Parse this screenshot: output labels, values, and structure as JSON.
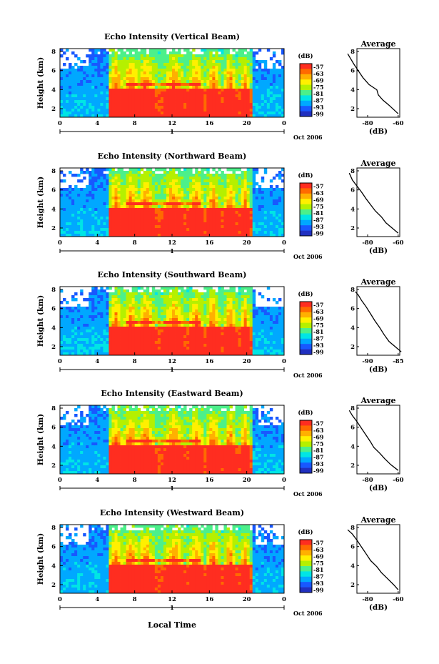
{
  "figure": {
    "xlabel": "Local Time",
    "cbar_unit": "(dB)",
    "cbar_ticks": [
      "-57",
      "-63",
      "-69",
      "-75",
      "-81",
      "-87",
      "-93",
      "-99"
    ],
    "colors": [
      "#ff2d20",
      "#ff6a00",
      "#ffb000",
      "#fff000",
      "#b5f000",
      "#4cf08a",
      "#00e5e5",
      "#00a8ff",
      "#1858ff",
      "#2030c0"
    ]
  },
  "chart_data": [
    {
      "type": "heatmap",
      "title": "Echo Intensity (Vertical Beam)",
      "ylabel": "Height (km)",
      "yticks": [
        "8",
        "6",
        "4",
        "2"
      ],
      "xticks": [
        "0",
        "4",
        "8",
        "12",
        "16",
        "20",
        "0"
      ],
      "date_label": "1",
      "date_suffix": "Oct 2006",
      "avg_title": "Average",
      "avg_xlabel": "(dB)",
      "avg_xticks": [
        "-80",
        "-60"
      ],
      "avg_yticks": [
        "8",
        "6",
        "4",
        "2"
      ],
      "avg_profile": [
        [
          -60,
          1.0
        ],
        [
          -63,
          1.5
        ],
        [
          -66,
          2.0
        ],
        [
          -70,
          2.6
        ],
        [
          -73,
          3.2
        ],
        [
          -74,
          3.8
        ],
        [
          -79,
          4.4
        ],
        [
          -83,
          5.2
        ],
        [
          -86,
          6.0
        ],
        [
          -89,
          6.8
        ],
        [
          -91,
          7.4
        ],
        [
          -93,
          8.0
        ]
      ]
    },
    {
      "type": "heatmap",
      "title": "Echo Intensity (Northward Beam)",
      "ylabel": "Height (km)",
      "yticks": [
        "8",
        "6",
        "4",
        "2"
      ],
      "xticks": [
        "0",
        "4",
        "8",
        "12",
        "16",
        "20",
        "0"
      ],
      "date_label": "1",
      "date_suffix": "Oct 2006",
      "avg_title": "Average",
      "avg_xlabel": "(dB)",
      "avg_xticks": [
        "-80",
        "-60"
      ],
      "avg_yticks": [
        "8",
        "6",
        "4",
        "2"
      ],
      "avg_profile": [
        [
          -60,
          1.0
        ],
        [
          -64,
          1.6
        ],
        [
          -68,
          2.2
        ],
        [
          -71,
          2.9
        ],
        [
          -75,
          3.6
        ],
        [
          -78,
          4.3
        ],
        [
          -81,
          5.0
        ],
        [
          -84,
          5.8
        ],
        [
          -87,
          6.5
        ],
        [
          -90,
          7.2
        ],
        [
          -92,
          8.0
        ]
      ]
    },
    {
      "type": "heatmap",
      "title": "Echo Intensity (Southward Beam)",
      "ylabel": "Height (km)",
      "yticks": [
        "8",
        "6",
        "4",
        "2"
      ],
      "xticks": [
        "0",
        "4",
        "8",
        "12",
        "16",
        "20",
        "0"
      ],
      "date_label": "1",
      "date_suffix": "Oct 2006",
      "avg_title": "Average",
      "avg_xlabel": "(dB)",
      "avg_xticks": [
        "-90",
        "-85"
      ],
      "avg_yticks": [
        "8",
        "6",
        "4",
        "2"
      ],
      "avg_profile": [
        [
          -84.5,
          1.0
        ],
        [
          -85.5,
          1.6
        ],
        [
          -86.5,
          2.2
        ],
        [
          -87.3,
          3.0
        ],
        [
          -88,
          3.8
        ],
        [
          -88.8,
          4.6
        ],
        [
          -89.5,
          5.4
        ],
        [
          -90.2,
          6.2
        ],
        [
          -91,
          7.0
        ],
        [
          -91.5,
          7.6
        ],
        [
          -92,
          8.0
        ]
      ]
    },
    {
      "type": "heatmap",
      "title": "Echo Intensity (Eastward Beam)",
      "ylabel": "Height (km)",
      "yticks": [
        "8",
        "6",
        "4",
        "2"
      ],
      "xticks": [
        "0",
        "4",
        "8",
        "12",
        "16",
        "20",
        "0"
      ],
      "date_label": "1",
      "date_suffix": "Oct 2006",
      "avg_title": "Average",
      "avg_xlabel": "(dB)",
      "avg_xticks": [
        "-80",
        "-60"
      ],
      "avg_yticks": [
        "8",
        "6",
        "4",
        "2"
      ],
      "avg_profile": [
        [
          -60,
          1.0
        ],
        [
          -65,
          1.7
        ],
        [
          -69,
          2.4
        ],
        [
          -72,
          3.0
        ],
        [
          -76,
          3.7
        ],
        [
          -78,
          4.3
        ],
        [
          -81,
          5.1
        ],
        [
          -84,
          5.9
        ],
        [
          -87,
          6.7
        ],
        [
          -90,
          7.4
        ],
        [
          -92,
          8.0
        ]
      ]
    },
    {
      "type": "heatmap",
      "title": "Echo Intensity (Westward Beam)",
      "ylabel": "Height (km)",
      "yticks": [
        "8",
        "6",
        "4",
        "2"
      ],
      "xticks": [
        "0",
        "4",
        "8",
        "12",
        "16",
        "20",
        "0"
      ],
      "date_label": "1",
      "date_suffix": "Oct 2006",
      "avg_title": "Average",
      "avg_xlabel": "(dB)",
      "avg_xticks": [
        "-80",
        "-60"
      ],
      "avg_yticks": [
        "8",
        "6",
        "4",
        "2"
      ],
      "avg_profile": [
        [
          -60,
          1.0
        ],
        [
          -63,
          1.6
        ],
        [
          -67,
          2.3
        ],
        [
          -71,
          3.0
        ],
        [
          -74,
          3.7
        ],
        [
          -78,
          4.4
        ],
        [
          -81,
          5.2
        ],
        [
          -84,
          6.0
        ],
        [
          -87,
          6.8
        ],
        [
          -90,
          7.5
        ],
        [
          -93,
          8.0
        ]
      ]
    }
  ]
}
